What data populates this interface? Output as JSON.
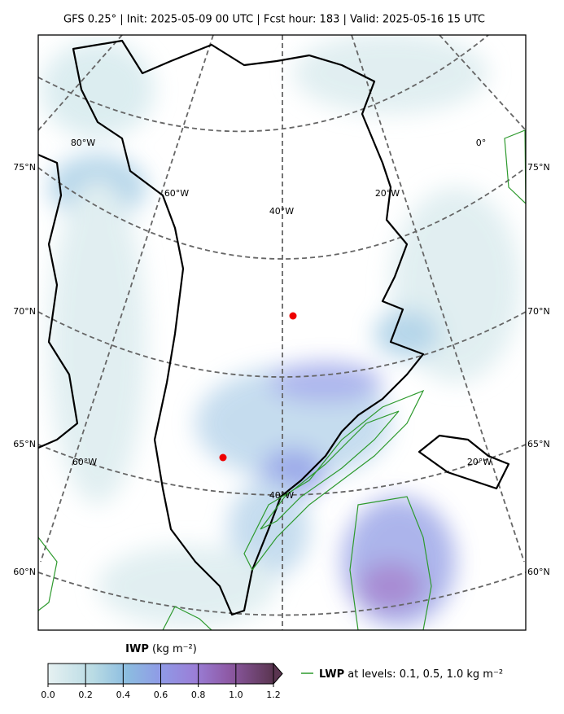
{
  "header": {
    "title": "GFS 0.25$^\\circ$  |  Init: 2025-05-09 00 UTC  |  Fcst hour: 183  |  Valid: 2025-05-16 15 UTC"
  },
  "map": {
    "lat_labels": [
      "75°N",
      "70°N",
      "65°N",
      "60°N"
    ],
    "lon_labels": [
      "80°W",
      "60°W",
      "40°W",
      "20°W",
      "0°",
      "60°W",
      "40°W",
      "20°W"
    ]
  },
  "colorbar": {
    "label": "IWP",
    "unit": "(kg m⁻²)",
    "ticks": [
      "0.0",
      "0.2",
      "0.4",
      "0.6",
      "0.8",
      "1.0",
      "1.2"
    ]
  },
  "legend": {
    "label": "LWP",
    "text": "at levels: 0.1, 0.5, 1.0  kg m⁻²"
  }
}
